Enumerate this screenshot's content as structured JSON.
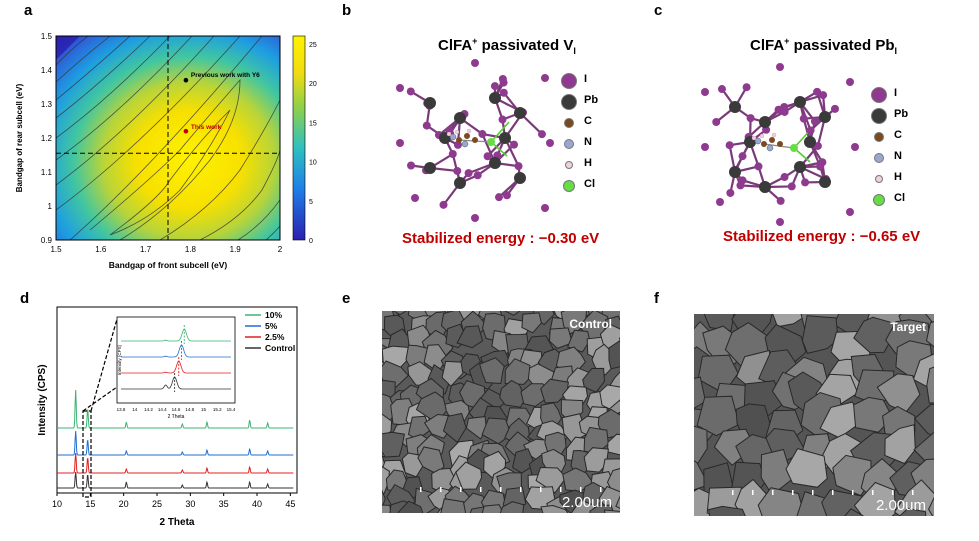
{
  "panels": {
    "a": "a",
    "b": "b",
    "c": "c",
    "d": "d",
    "e": "e",
    "f": "f"
  },
  "panel_a": {
    "xlabel": "Bandgap of front subcell (eV)",
    "ylabel": "Bandgap of rear subcell (eV)",
    "xticks": [
      "1.5",
      "1.6",
      "1.7",
      "1.8",
      "1.9",
      "2"
    ],
    "yticks": [
      "0.9",
      "1",
      "1.1",
      "1.2",
      "1.3",
      "1.4",
      "1.5"
    ],
    "colorbar_ticks": [
      "0",
      "5",
      "10",
      "15",
      "20",
      "25"
    ],
    "annotation_prev": "Previous work with Y6",
    "annotation_this": "This work",
    "colors": {
      "prev_point": "#000000",
      "this_point": "#c00000"
    }
  },
  "chart_data": [
    {
      "type": "heatmap",
      "title": "",
      "xlabel": "Bandgap of front subcell (eV)",
      "ylabel": "Bandgap of rear subcell (eV)",
      "xlim": [
        1.5,
        2.0
      ],
      "ylim": [
        0.9,
        1.5
      ],
      "zlim": [
        0,
        26
      ],
      "points": [
        {
          "label": "Previous work with Y6",
          "x": 1.79,
          "y": 1.37
        },
        {
          "label": "This work",
          "x": 1.79,
          "y": 1.22
        }
      ],
      "dashed_lines": {
        "x": 1.75,
        "y": 1.155
      }
    },
    {
      "type": "line",
      "xlabel": "2 Theta",
      "ylabel": "Intensity (CPS)",
      "xlim": [
        10,
        46
      ],
      "xticks": [
        10,
        15,
        20,
        25,
        30,
        35,
        40,
        45
      ],
      "series": [
        {
          "name": "10%",
          "color": "#3cb371",
          "peaks": [
            12.8,
            14.6,
            20.4,
            28.8,
            32.5,
            38.9,
            41.6
          ]
        },
        {
          "name": "5%",
          "color": "#1e6fd0",
          "peaks": [
            12.8,
            14.6,
            20.4,
            28.8,
            32.5,
            38.9,
            41.6
          ]
        },
        {
          "name": "2.5%",
          "color": "#e02020",
          "peaks": [
            12.8,
            14.6,
            20.4,
            28.8,
            32.5,
            38.9,
            41.6
          ]
        },
        {
          "name": "Control",
          "color": "#333333",
          "peaks": [
            12.8,
            14.6,
            20.4,
            28.8,
            32.5,
            38.9,
            41.6
          ]
        }
      ],
      "inset": {
        "xlabel": "2 Theta",
        "ylabel": "Intensity (CPS)",
        "xticks": [
          "13.8",
          "14",
          "14.2",
          "14.4",
          "14.6",
          "14.8",
          "15",
          "15.2",
          "15.4"
        ],
        "peak_positions": [
          14.72,
          14.68,
          14.64,
          14.58
        ]
      }
    }
  ],
  "panel_b": {
    "title": "ClFA",
    "title_sup": "+",
    "title_rest": " passivated V",
    "title_sub": "I",
    "energy": "Stabilized energy : −0.30 eV"
  },
  "panel_c": {
    "title": "ClFA",
    "title_sup": "+",
    "title_rest": " passivated Pb",
    "title_sub": "I",
    "energy": "Stabilized energy : −0.65 eV"
  },
  "legend_atoms": [
    {
      "label": "I",
      "color": "#8e3a8e"
    },
    {
      "label": "Pb",
      "color": "#3a3a3a"
    },
    {
      "label": "C",
      "color": "#7a4a20"
    },
    {
      "label": "N",
      "color": "#9aa8d0"
    },
    {
      "label": "H",
      "color": "#f0d0e0"
    },
    {
      "label": "Cl",
      "color": "#66dd44"
    }
  ],
  "panel_e": {
    "label": "Control",
    "scale": "2.00um"
  },
  "panel_f": {
    "label": "Target",
    "scale": "2.00um"
  }
}
